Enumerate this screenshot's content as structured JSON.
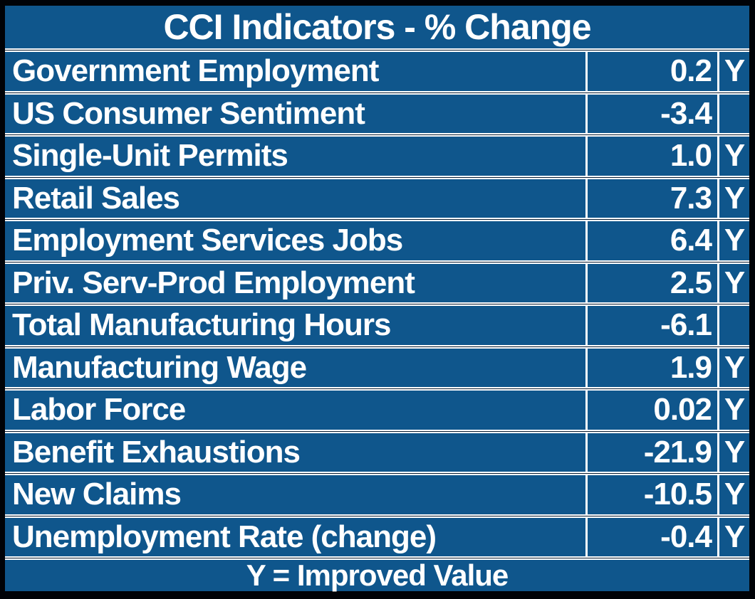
{
  "title": "CCI Indicators - % Change",
  "footer": "Y = Improved Value",
  "colors": {
    "table_background": "#0f568c",
    "gridline": "#ffffff",
    "inner_dark_line": "#071a30",
    "outer_frame": "#000207",
    "text": "#ffffff"
  },
  "chart_data": {
    "type": "table",
    "title": "CCI Indicators - % Change",
    "footnote": "Y = Improved Value",
    "flag_meaning": "Y = Improved Value",
    "rows": [
      {
        "indicator": "Government Employment",
        "value": "0.2",
        "improved": "Y"
      },
      {
        "indicator": "US Consumer Sentiment",
        "value": "-3.4",
        "improved": ""
      },
      {
        "indicator": "Single-Unit Permits",
        "value": "1.0",
        "improved": "Y"
      },
      {
        "indicator": "Retail Sales",
        "value": "7.3",
        "improved": "Y"
      },
      {
        "indicator": "Employment Services Jobs",
        "value": "6.4",
        "improved": "Y"
      },
      {
        "indicator": "Priv. Serv-Prod Employment",
        "value": "2.5",
        "improved": "Y"
      },
      {
        "indicator": "Total Manufacturing Hours",
        "value": "-6.1",
        "improved": ""
      },
      {
        "indicator": "Manufacturing Wage",
        "value": "1.9",
        "improved": "Y"
      },
      {
        "indicator": "Labor Force",
        "value": "0.02",
        "improved": "Y"
      },
      {
        "indicator": "Benefit Exhaustions",
        "value": "-21.9",
        "improved": "Y"
      },
      {
        "indicator": "New Claims",
        "value": "-10.5",
        "improved": "Y"
      },
      {
        "indicator": "Unemployment Rate (change)",
        "value": "-0.4",
        "improved": "Y"
      }
    ]
  }
}
